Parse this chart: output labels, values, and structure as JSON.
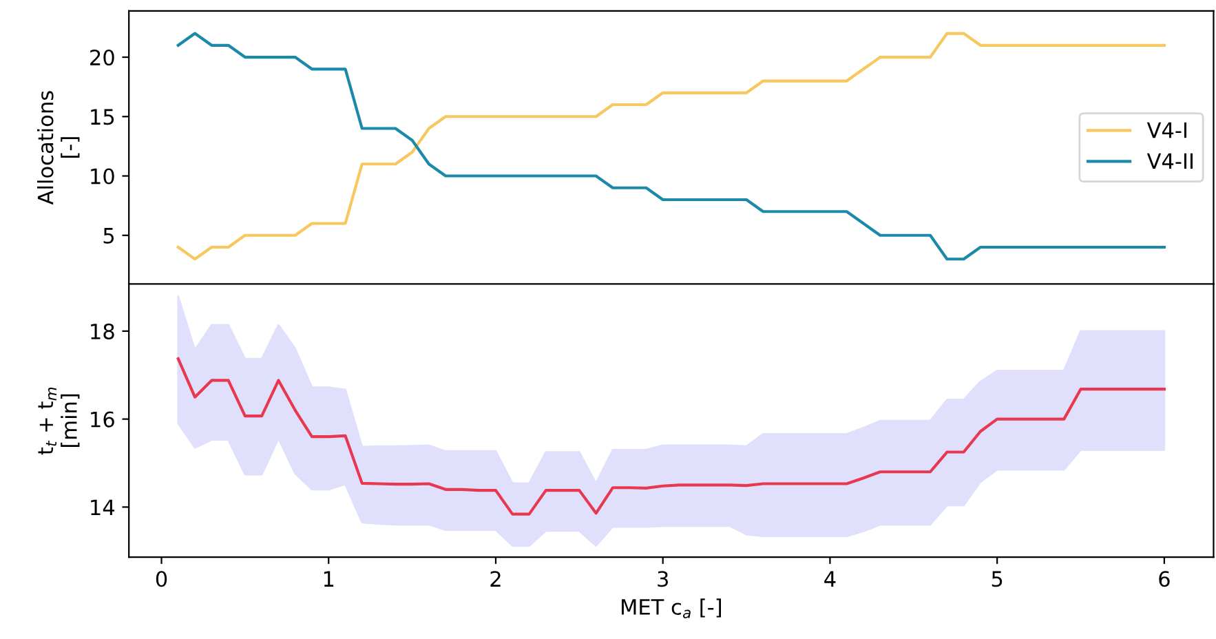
{
  "chart_data": [
    {
      "type": "line",
      "ylabel": "Allocations\n[-]",
      "x": [
        0.1,
        0.2,
        0.3,
        0.4,
        0.5,
        0.6,
        0.7,
        0.8,
        0.9,
        1.0,
        1.1,
        1.2,
        1.3,
        1.4,
        1.5,
        1.6,
        1.7,
        1.8,
        1.9,
        2.0,
        2.1,
        2.2,
        2.3,
        2.4,
        2.5,
        2.6,
        2.7,
        2.8,
        2.9,
        3.0,
        3.1,
        3.2,
        3.3,
        3.4,
        3.5,
        3.6,
        3.7,
        3.8,
        3.9,
        4.0,
        4.1,
        4.2,
        4.3,
        4.4,
        4.5,
        4.6,
        4.7,
        4.8,
        4.9,
        5.0,
        5.1,
        5.2,
        5.3,
        5.4,
        5.5,
        5.6,
        5.7,
        5.8,
        5.9,
        6.0
      ],
      "series": [
        {
          "name": "V4-I",
          "color": "#f6c85f",
          "values": [
            4,
            3,
            4,
            4,
            5,
            5,
            5,
            5,
            6,
            6,
            6,
            11,
            11,
            11,
            12,
            14,
            15,
            15,
            15,
            15,
            15,
            15,
            15,
            15,
            15,
            15,
            16,
            16,
            16,
            17,
            17,
            17,
            17,
            17,
            17,
            18,
            18,
            18,
            18,
            18,
            18,
            19,
            20,
            20,
            20,
            20,
            22,
            22,
            21,
            21,
            21,
            21,
            21,
            21,
            21,
            21,
            21,
            21,
            21,
            21
          ]
        },
        {
          "name": "V4-II",
          "color": "#1a8aa8",
          "values": [
            21,
            22,
            21,
            21,
            20,
            20,
            20,
            20,
            19,
            19,
            19,
            14,
            14,
            14,
            13,
            11,
            10,
            10,
            10,
            10,
            10,
            10,
            10,
            10,
            10,
            10,
            9,
            9,
            9,
            8,
            8,
            8,
            8,
            8,
            8,
            7,
            7,
            7,
            7,
            7,
            7,
            6,
            5,
            5,
            5,
            5,
            3,
            3,
            4,
            4,
            4,
            4,
            4,
            4,
            4,
            4,
            4,
            4,
            4,
            4
          ]
        }
      ],
      "xlim": [
        -0.195,
        6.295
      ],
      "ylim": [
        0.9,
        23.9
      ],
      "yticks": [
        5,
        10,
        15,
        20
      ],
      "tick_labels": "y",
      "legend": "right",
      "grid": false
    },
    {
      "type": "line",
      "xlabel": "MET c$_{a}$ [-]",
      "ylabel": "t$_{t}$ + t$_{m}$\n[min]",
      "x": [
        0.1,
        0.2,
        0.3,
        0.4,
        0.5,
        0.6,
        0.7,
        0.8,
        0.9,
        1.0,
        1.1,
        1.2,
        1.3,
        1.4,
        1.5,
        1.6,
        1.7,
        1.8,
        1.9,
        2.0,
        2.1,
        2.2,
        2.3,
        2.4,
        2.5,
        2.6,
        2.7,
        2.8,
        2.9,
        3.0,
        3.1,
        3.2,
        3.3,
        3.4,
        3.5,
        3.6,
        3.7,
        3.8,
        3.9,
        4.0,
        4.1,
        4.2,
        4.3,
        4.4,
        4.5,
        4.6,
        4.7,
        4.8,
        4.9,
        5.0,
        5.1,
        5.2,
        5.3,
        5.4,
        5.5,
        5.6,
        5.7,
        5.8,
        5.9,
        6.0
      ],
      "series": [
        {
          "color": "#e8384f",
          "values": [
            17.37,
            16.5,
            16.88,
            16.88,
            16.07,
            16.07,
            16.88,
            16.2,
            15.6,
            15.6,
            15.62,
            14.54,
            14.53,
            14.52,
            14.52,
            14.53,
            14.4,
            14.4,
            14.38,
            14.38,
            13.84,
            13.84,
            14.38,
            14.38,
            14.38,
            13.86,
            14.44,
            14.44,
            14.43,
            14.48,
            14.5,
            14.5,
            14.5,
            14.5,
            14.49,
            14.53,
            14.53,
            14.53,
            14.53,
            14.53,
            14.53,
            14.66,
            14.8,
            14.8,
            14.8,
            14.8,
            15.25,
            15.25,
            15.72,
            16.0,
            16.0,
            16.0,
            16.0,
            16.0,
            16.68,
            16.68,
            16.68,
            16.68,
            16.68,
            16.68
          ],
          "upper": [
            18.79,
            17.57,
            18.14,
            18.14,
            17.37,
            17.37,
            18.14,
            17.6,
            16.72,
            16.72,
            16.67,
            15.37,
            15.38,
            15.38,
            15.39,
            15.4,
            15.27,
            15.27,
            15.27,
            15.27,
            14.54,
            14.54,
            15.25,
            15.25,
            15.25,
            14.54,
            15.3,
            15.3,
            15.3,
            15.4,
            15.4,
            15.4,
            15.4,
            15.4,
            15.38,
            15.66,
            15.66,
            15.66,
            15.66,
            15.66,
            15.66,
            15.8,
            15.96,
            15.96,
            15.96,
            15.96,
            16.44,
            16.44,
            16.85,
            17.1,
            17.1,
            17.1,
            17.1,
            17.1,
            18.0,
            18.0,
            18.0,
            18.0,
            18.0,
            18.0
          ],
          "lower": [
            15.9,
            15.35,
            15.53,
            15.53,
            14.74,
            14.74,
            15.56,
            14.76,
            14.4,
            14.4,
            14.52,
            13.65,
            13.62,
            13.6,
            13.6,
            13.6,
            13.48,
            13.48,
            13.48,
            13.48,
            13.12,
            13.12,
            13.46,
            13.46,
            13.46,
            13.12,
            13.55,
            13.55,
            13.55,
            13.57,
            13.57,
            13.57,
            13.57,
            13.57,
            13.38,
            13.34,
            13.34,
            13.34,
            13.34,
            13.34,
            13.34,
            13.45,
            13.6,
            13.6,
            13.6,
            13.6,
            14.04,
            14.04,
            14.57,
            14.85,
            14.85,
            14.85,
            14.85,
            14.85,
            15.3,
            15.3,
            15.3,
            15.3,
            15.3,
            15.3
          ]
        }
      ],
      "xlim": [
        -0.195,
        6.295
      ],
      "xticks": [
        0,
        1,
        2,
        3,
        4,
        5,
        6
      ],
      "ylim": [
        12.86,
        19.07
      ],
      "yticks": [
        14,
        16,
        18
      ],
      "grid": false
    }
  ]
}
